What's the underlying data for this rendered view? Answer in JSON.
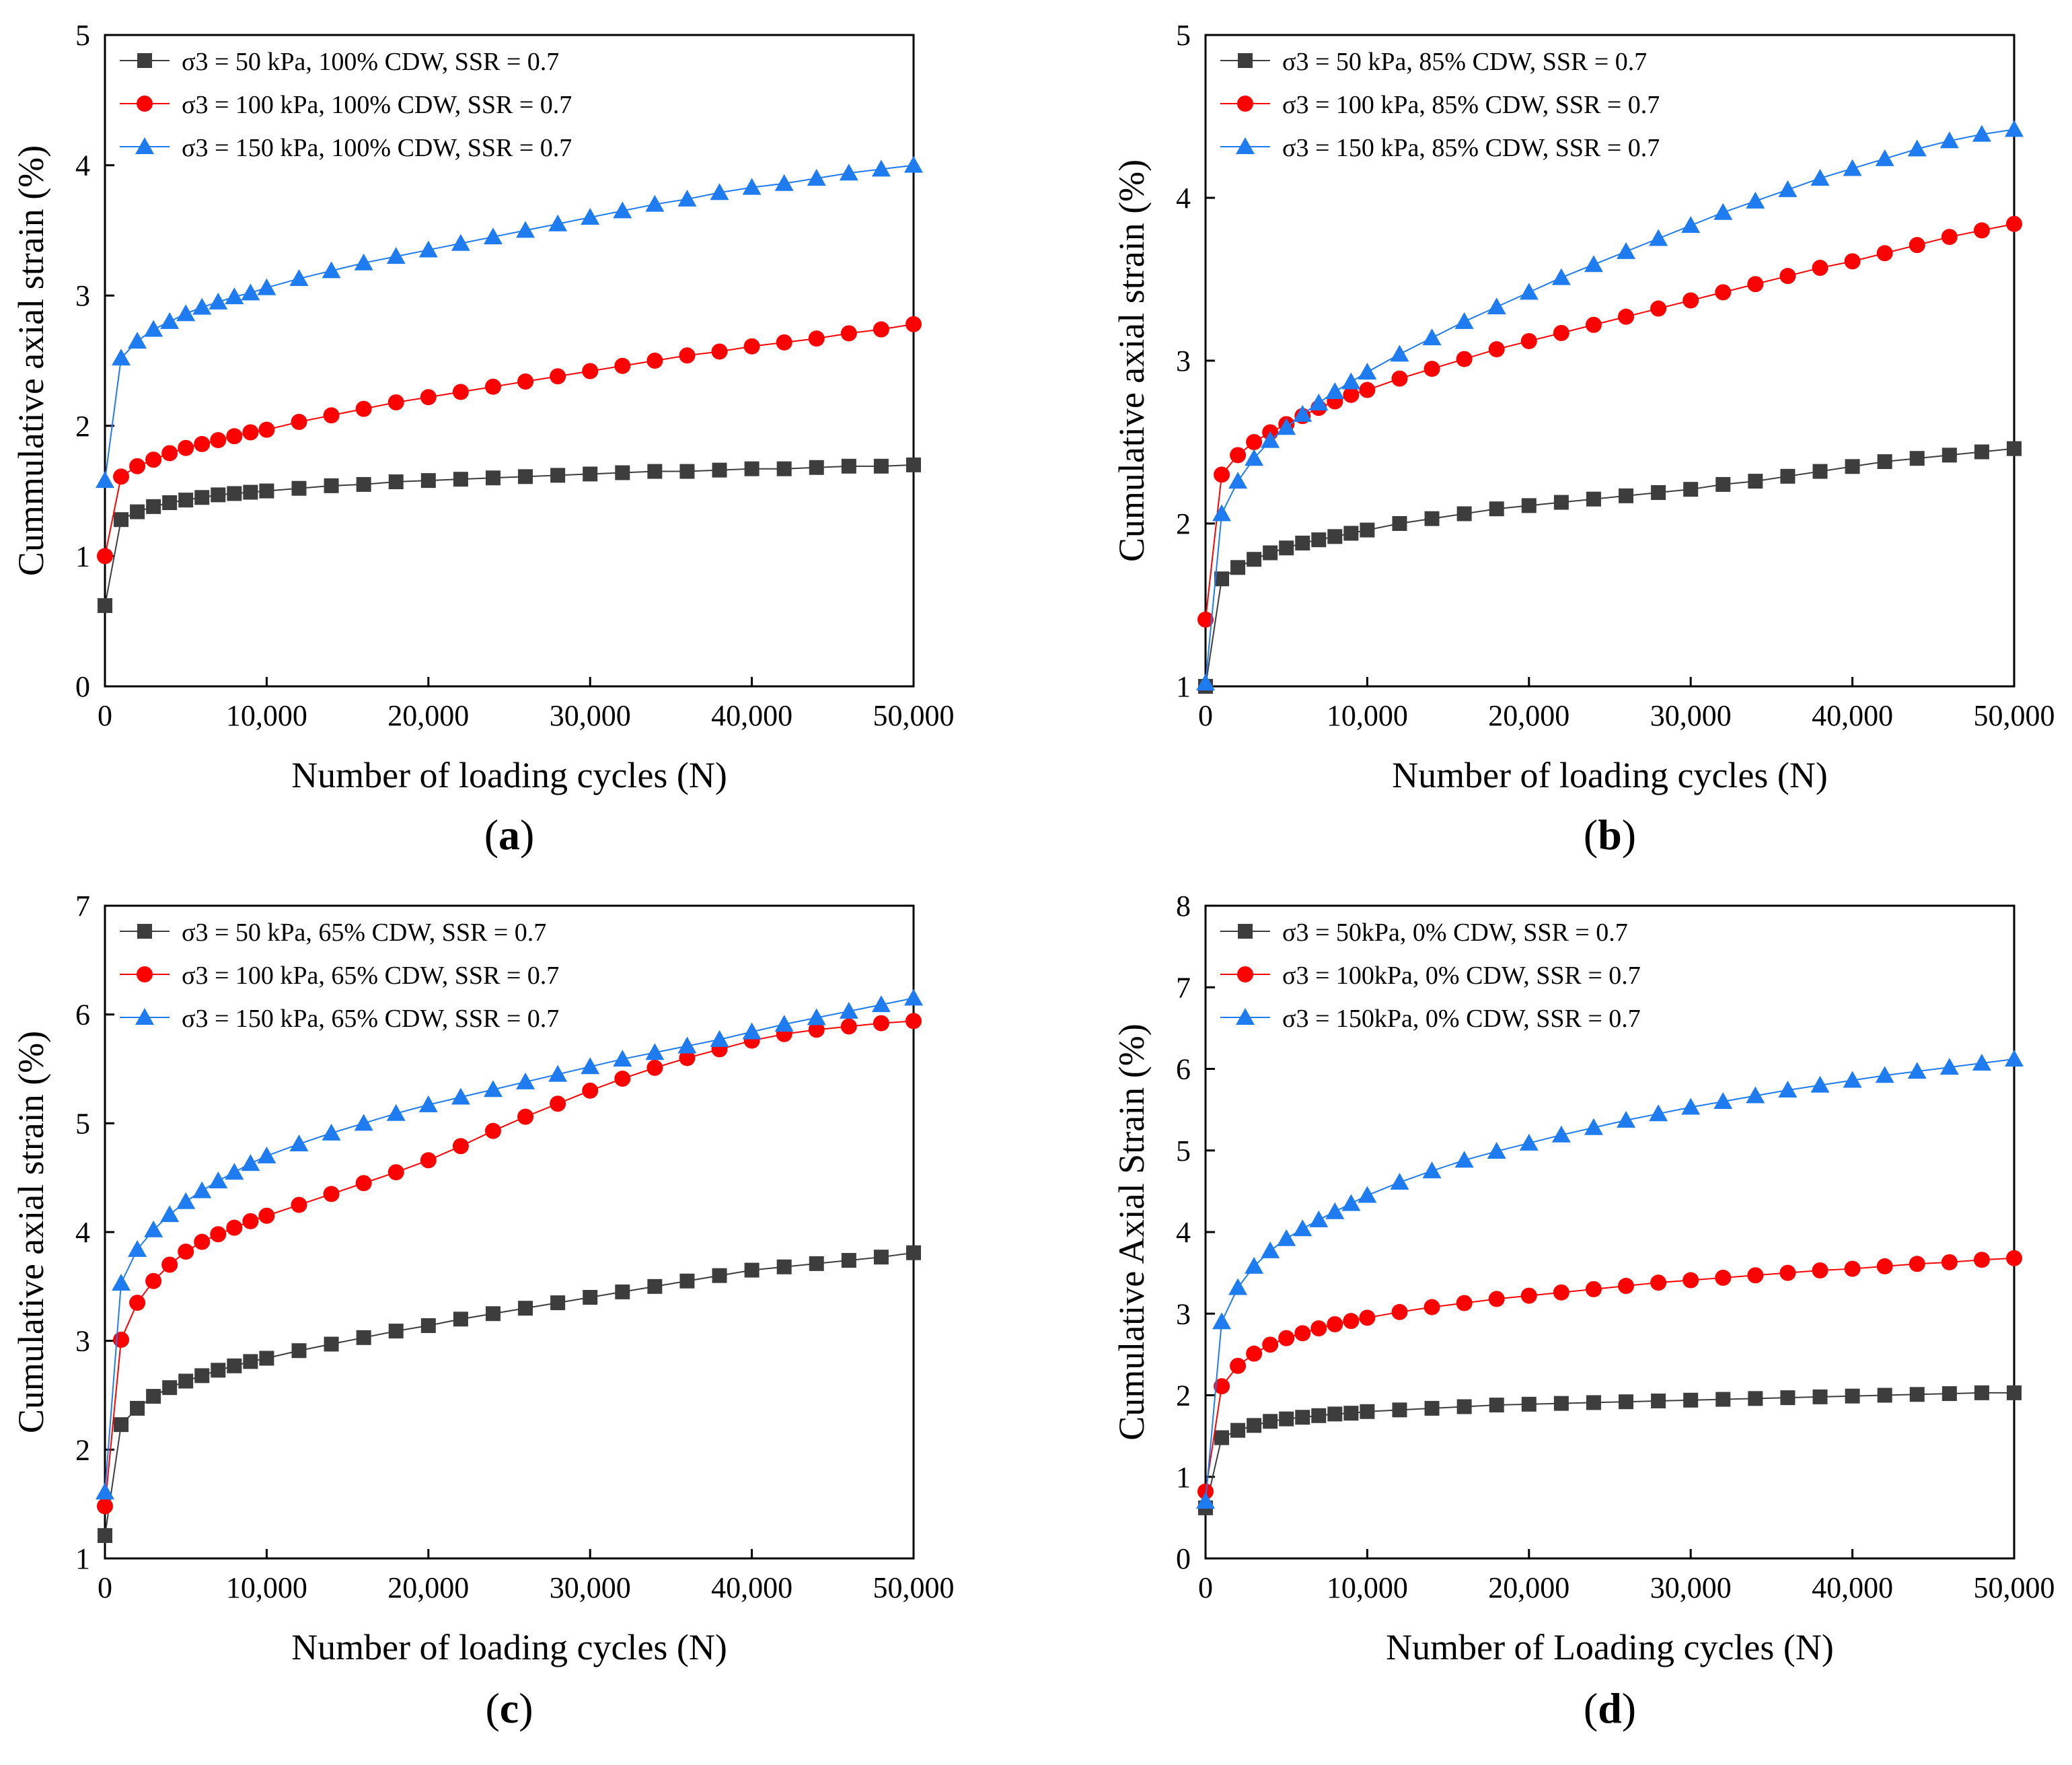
{
  "colors": {
    "s50": "#3d3d3d",
    "s100": "#ff0000",
    "s150": "#1e7bf0",
    "axis": "#000000"
  },
  "chart_data": [
    {
      "panel_label": "a",
      "type": "line",
      "xlabel": "Number of loading cycles (N)",
      "ylabel": "Cummulative axial strain (%)",
      "xlim": [
        0,
        50000
      ],
      "ylim": [
        0,
        5
      ],
      "xticks": [
        0,
        10000,
        20000,
        30000,
        40000,
        50000
      ],
      "xtick_labels": [
        "0",
        "10,000",
        "20,000",
        "30,000",
        "40,000",
        "50,000"
      ],
      "yticks": [
        0,
        1,
        2,
        3,
        4,
        5
      ],
      "ytick_labels": [
        "0",
        "1",
        "2",
        "3",
        "4",
        "5"
      ],
      "legend_position": "top-left",
      "x": [
        0,
        1000,
        2000,
        3000,
        4000,
        5000,
        6000,
        7000,
        8000,
        9000,
        10000,
        12000,
        14000,
        16000,
        18000,
        20000,
        22000,
        24000,
        26000,
        28000,
        30000,
        32000,
        34000,
        36000,
        38000,
        40000,
        42000,
        44000,
        46000,
        48000,
        50000
      ],
      "series": [
        {
          "name": "σ3 = 50 kPa,   100% CDW, SSR = 0.7",
          "marker": "square",
          "color": "s50",
          "values": [
            0.62,
            1.28,
            1.34,
            1.38,
            1.41,
            1.43,
            1.45,
            1.47,
            1.48,
            1.49,
            1.5,
            1.52,
            1.54,
            1.55,
            1.57,
            1.58,
            1.59,
            1.6,
            1.61,
            1.62,
            1.63,
            1.64,
            1.65,
            1.65,
            1.66,
            1.67,
            1.67,
            1.68,
            1.69,
            1.69,
            1.7
          ]
        },
        {
          "name": "σ3 = 100 kPa, 100% CDW, SSR = 0.7",
          "marker": "circle",
          "color": "s100",
          "values": [
            1.0,
            1.61,
            1.69,
            1.74,
            1.79,
            1.83,
            1.86,
            1.89,
            1.92,
            1.95,
            1.97,
            2.03,
            2.08,
            2.13,
            2.18,
            2.22,
            2.26,
            2.3,
            2.34,
            2.38,
            2.42,
            2.46,
            2.5,
            2.54,
            2.57,
            2.61,
            2.64,
            2.67,
            2.71,
            2.74,
            2.78
          ]
        },
        {
          "name": "σ3 = 150 kPa, 100% CDW, SSR = 0.7",
          "marker": "triangle",
          "color": "s150",
          "values": [
            1.58,
            2.52,
            2.65,
            2.74,
            2.8,
            2.86,
            2.91,
            2.95,
            2.99,
            3.02,
            3.06,
            3.13,
            3.19,
            3.25,
            3.3,
            3.35,
            3.4,
            3.45,
            3.5,
            3.55,
            3.6,
            3.65,
            3.7,
            3.74,
            3.79,
            3.83,
            3.86,
            3.9,
            3.94,
            3.97,
            4.0
          ]
        }
      ]
    },
    {
      "panel_label": "b",
      "type": "line",
      "xlabel": "Number of loading cycles (N)",
      "ylabel": "Cumulative axial strain (%)",
      "xlim": [
        0,
        50000
      ],
      "ylim": [
        1,
        5
      ],
      "xticks": [
        0,
        10000,
        20000,
        30000,
        40000,
        50000
      ],
      "xtick_labels": [
        "0",
        "10,000",
        "20,000",
        "30,000",
        "40,000",
        "50,000"
      ],
      "yticks": [
        1,
        2,
        3,
        4,
        5
      ],
      "ytick_labels": [
        "1",
        "2",
        "3",
        "4",
        "5"
      ],
      "legend_position": "top-left",
      "x": [
        0,
        1000,
        2000,
        3000,
        4000,
        5000,
        6000,
        7000,
        8000,
        9000,
        10000,
        12000,
        14000,
        16000,
        18000,
        20000,
        22000,
        24000,
        26000,
        28000,
        30000,
        32000,
        34000,
        36000,
        38000,
        40000,
        42000,
        44000,
        46000,
        48000,
        50000
      ],
      "series": [
        {
          "name": "σ3 = 50 kPa,   85% CDW, SSR = 0.7",
          "marker": "square",
          "color": "s50",
          "values": [
            1.0,
            1.66,
            1.73,
            1.78,
            1.82,
            1.85,
            1.88,
            1.9,
            1.92,
            1.94,
            1.96,
            2.0,
            2.03,
            2.06,
            2.09,
            2.11,
            2.13,
            2.15,
            2.17,
            2.19,
            2.21,
            2.24,
            2.26,
            2.29,
            2.32,
            2.35,
            2.38,
            2.4,
            2.42,
            2.44,
            2.46
          ]
        },
        {
          "name": "σ3 = 100 kPa, 85% CDW, SSR = 0.7",
          "marker": "circle",
          "color": "s100",
          "values": [
            1.41,
            2.3,
            2.42,
            2.5,
            2.56,
            2.61,
            2.66,
            2.71,
            2.75,
            2.79,
            2.82,
            2.89,
            2.95,
            3.01,
            3.07,
            3.12,
            3.17,
            3.22,
            3.27,
            3.32,
            3.37,
            3.42,
            3.47,
            3.52,
            3.57,
            3.61,
            3.66,
            3.71,
            3.76,
            3.8,
            3.84
          ]
        },
        {
          "name": "σ3 = 150 kPa, 85% CDW, SSR = 0.7",
          "marker": "triangle",
          "color": "s150",
          "values": [
            1.02,
            2.06,
            2.26,
            2.4,
            2.51,
            2.59,
            2.67,
            2.74,
            2.81,
            2.87,
            2.93,
            3.04,
            3.14,
            3.24,
            3.33,
            3.42,
            3.51,
            3.59,
            3.67,
            3.75,
            3.83,
            3.91,
            3.98,
            4.05,
            4.12,
            4.18,
            4.24,
            4.3,
            4.35,
            4.39,
            4.42
          ]
        }
      ]
    },
    {
      "panel_label": "c",
      "type": "line",
      "xlabel": "Number of loading cycles (N)",
      "ylabel": "Cumulative axial strain (%)",
      "xlim": [
        0,
        50000
      ],
      "ylim": [
        1,
        7
      ],
      "xticks": [
        0,
        10000,
        20000,
        30000,
        40000,
        50000
      ],
      "xtick_labels": [
        "0",
        "10,000",
        "20,000",
        "30,000",
        "40,000",
        "50,000"
      ],
      "yticks": [
        1,
        2,
        3,
        4,
        5,
        6,
        7
      ],
      "ytick_labels": [
        "1",
        "2",
        "3",
        "4",
        "5",
        "6",
        "7"
      ],
      "legend_position": "top-left",
      "x": [
        0,
        1000,
        2000,
        3000,
        4000,
        5000,
        6000,
        7000,
        8000,
        9000,
        10000,
        12000,
        14000,
        16000,
        18000,
        20000,
        22000,
        24000,
        26000,
        28000,
        30000,
        32000,
        34000,
        36000,
        38000,
        40000,
        42000,
        44000,
        46000,
        48000,
        50000
      ],
      "series": [
        {
          "name": "σ3 = 50 kPa,   65% CDW, SSR = 0.7",
          "marker": "square",
          "color": "s50",
          "values": [
            1.21,
            2.23,
            2.38,
            2.49,
            2.57,
            2.63,
            2.68,
            2.73,
            2.77,
            2.81,
            2.84,
            2.91,
            2.97,
            3.03,
            3.09,
            3.14,
            3.2,
            3.25,
            3.3,
            3.35,
            3.4,
            3.45,
            3.5,
            3.55,
            3.6,
            3.65,
            3.68,
            3.71,
            3.74,
            3.77,
            3.81
          ]
        },
        {
          "name": "σ3 = 100 kPa, 65% CDW, SSR = 0.7",
          "marker": "circle",
          "color": "s100",
          "values": [
            1.48,
            3.01,
            3.35,
            3.55,
            3.7,
            3.82,
            3.91,
            3.98,
            4.04,
            4.1,
            4.15,
            4.25,
            4.35,
            4.45,
            4.55,
            4.66,
            4.79,
            4.93,
            5.06,
            5.18,
            5.3,
            5.41,
            5.51,
            5.6,
            5.68,
            5.76,
            5.82,
            5.86,
            5.89,
            5.92,
            5.94
          ]
        },
        {
          "name": "σ3 = 150 kPa, 65% CDW, SSR = 0.7",
          "marker": "triangle",
          "color": "s150",
          "values": [
            1.61,
            3.53,
            3.84,
            4.02,
            4.16,
            4.28,
            4.38,
            4.47,
            4.55,
            4.63,
            4.7,
            4.81,
            4.91,
            5.0,
            5.09,
            5.17,
            5.24,
            5.31,
            5.38,
            5.45,
            5.52,
            5.59,
            5.65,
            5.71,
            5.77,
            5.84,
            5.91,
            5.97,
            6.03,
            6.09,
            6.15
          ]
        }
      ]
    },
    {
      "panel_label": "d",
      "type": "line",
      "xlabel": "Number of Loading cycles (N)",
      "ylabel": "Cumulative Axial Strain (%)",
      "xlim": [
        0,
        50000
      ],
      "ylim": [
        0,
        8
      ],
      "xticks": [
        0,
        10000,
        20000,
        30000,
        40000,
        50000
      ],
      "xtick_labels": [
        "0",
        "10,000",
        "20,000",
        "30,000",
        "40,000",
        "50,000"
      ],
      "yticks": [
        0,
        1,
        2,
        3,
        4,
        5,
        6,
        7,
        8
      ],
      "ytick_labels": [
        "0",
        "1",
        "2",
        "3",
        "4",
        "5",
        "6",
        "7",
        "8"
      ],
      "legend_position": "top-left",
      "x": [
        0,
        1000,
        2000,
        3000,
        4000,
        5000,
        6000,
        7000,
        8000,
        9000,
        10000,
        12000,
        14000,
        16000,
        18000,
        20000,
        22000,
        24000,
        26000,
        28000,
        30000,
        32000,
        34000,
        36000,
        38000,
        40000,
        42000,
        44000,
        46000,
        48000,
        50000
      ],
      "series": [
        {
          "name": "σ3 = 50kPa,   0% CDW, SSR = 0.7",
          "marker": "square",
          "color": "s50",
          "values": [
            0.62,
            1.48,
            1.57,
            1.63,
            1.68,
            1.71,
            1.73,
            1.75,
            1.77,
            1.78,
            1.8,
            1.82,
            1.84,
            1.86,
            1.88,
            1.89,
            1.9,
            1.91,
            1.92,
            1.93,
            1.94,
            1.95,
            1.96,
            1.97,
            1.98,
            1.99,
            2.0,
            2.01,
            2.02,
            2.03,
            2.03
          ]
        },
        {
          "name": "σ3 = 100kPa, 0% CDW, SSR = 0.7",
          "marker": "circle",
          "color": "s100",
          "values": [
            0.82,
            2.11,
            2.36,
            2.51,
            2.62,
            2.7,
            2.76,
            2.82,
            2.87,
            2.91,
            2.95,
            3.02,
            3.08,
            3.13,
            3.18,
            3.22,
            3.26,
            3.3,
            3.34,
            3.38,
            3.41,
            3.44,
            3.47,
            3.5,
            3.53,
            3.55,
            3.58,
            3.61,
            3.63,
            3.66,
            3.68
          ]
        },
        {
          "name": "σ3 = 150kPa, 0% CDW, SSR = 0.7",
          "marker": "triangle",
          "color": "s150",
          "values": [
            0.7,
            2.9,
            3.32,
            3.58,
            3.77,
            3.92,
            4.04,
            4.15,
            4.25,
            4.35,
            4.45,
            4.61,
            4.75,
            4.88,
            4.99,
            5.09,
            5.19,
            5.28,
            5.37,
            5.45,
            5.53,
            5.6,
            5.67,
            5.74,
            5.8,
            5.86,
            5.92,
            5.97,
            6.02,
            6.07,
            6.12
          ]
        }
      ]
    }
  ]
}
